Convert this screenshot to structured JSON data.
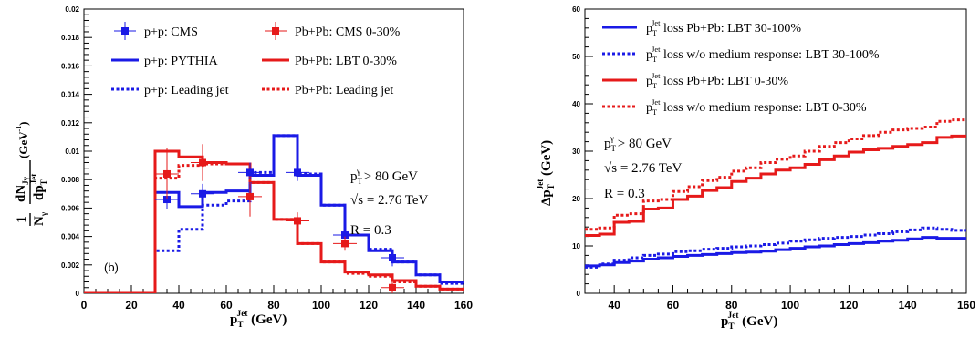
{
  "chart_data": [
    {
      "type": "line",
      "panel_label": "(b)",
      "xlabel": {
        "main": "p",
        "sub": "T",
        "sup": "Jet",
        "unit": " (GeV)"
      },
      "ylabel": {
        "prefix_num": "1",
        "prefix_den": "N",
        "prefix_den_sub": "γ",
        "num": "dN",
        "num_sub": "Jγ",
        "den": "dp",
        "den_sub": "T",
        "den_sup": "Jet",
        "unit": " (GeV",
        "unit_sup": "-1",
        "unit_end": ")"
      },
      "xlim": [
        0,
        160
      ],
      "ylim": [
        0,
        0.02
      ],
      "xticks": [
        "0",
        "20",
        "40",
        "60",
        "80",
        "100",
        "120",
        "140",
        "160"
      ],
      "yticks": [
        "0",
        "0.002",
        "0.004",
        "0.006",
        "0.008",
        "0.01",
        "0.012",
        "0.014",
        "0.016",
        "0.018",
        "0.02"
      ],
      "annotation": {
        "cut": "p",
        "cut_sub": "T",
        "cut_sup": "γ",
        "cut_rest": " > 80 GeV",
        "sqrt": "√",
        "energy": "s = 2.76 TeV",
        "radius": "R = 0.3"
      },
      "legend": [
        {
          "label": "p+p: CMS",
          "color": "#1a1ae6",
          "style": "marker"
        },
        {
          "label": "Pb+Pb: CMS 0-30%",
          "color": "#e61a1a",
          "style": "marker"
        },
        {
          "label": "p+p: PYTHIA",
          "color": "#1a1ae6",
          "style": "solid"
        },
        {
          "label": "Pb+Pb: LBT 0-30%",
          "color": "#e61a1a",
          "style": "solid"
        },
        {
          "label": "p+p: Leading jet",
          "color": "#1a1ae6",
          "style": "dotted"
        },
        {
          "label": "Pb+Pb: Leading jet",
          "color": "#e61a1a",
          "style": "dotted"
        }
      ],
      "series": [
        {
          "name": "p+p: PYTHIA",
          "kind": "hist",
          "style": "solid",
          "color": "#1a1ae6",
          "edges": [
            0,
            10,
            20,
            30,
            40,
            50,
            60,
            70,
            80,
            90,
            100,
            110,
            120,
            130,
            140,
            150,
            160
          ],
          "values": [
            0,
            0,
            0,
            0.0071,
            0.0061,
            0.0071,
            0.0072,
            0.0083,
            0.0111,
            0.0083,
            0.0062,
            0.0041,
            0.003,
            0.0022,
            0.0013,
            0.0008
          ]
        },
        {
          "name": "Pb+Pb: LBT 0-30%",
          "kind": "hist",
          "style": "solid",
          "color": "#e61a1a",
          "edges": [
            0,
            10,
            20,
            30,
            40,
            50,
            60,
            70,
            80,
            90,
            100,
            110,
            120,
            130,
            140,
            150,
            160
          ],
          "values": [
            0,
            0,
            0,
            0.01,
            0.0096,
            0.0092,
            0.0091,
            0.0078,
            0.0052,
            0.0035,
            0.0022,
            0.0015,
            0.0013,
            0.0009,
            0.0005,
            0.0003
          ]
        },
        {
          "name": "p+p: Leading jet",
          "kind": "hist",
          "style": "dotted",
          "color": "#1a1ae6",
          "edges": [
            0,
            10,
            20,
            30,
            40,
            50,
            60,
            70,
            80,
            90,
            100,
            110,
            120,
            130,
            140,
            150,
            160
          ],
          "values": [
            0,
            0,
            0,
            0.003,
            0.0045,
            0.0062,
            0.0065,
            0.0085,
            0.0111,
            0.0084,
            0.0062,
            0.0041,
            0.0031,
            0.0022,
            0.0013,
            0.0007
          ]
        },
        {
          "name": "Pb+Pb: Leading jet",
          "kind": "hist",
          "style": "dotted",
          "color": "#e61a1a",
          "edges": [
            0,
            10,
            20,
            30,
            40,
            50,
            60,
            70,
            80,
            90,
            100,
            110,
            120,
            130,
            140,
            150,
            160
          ],
          "values": [
            0,
            0,
            0,
            0.0081,
            0.009,
            0.0091,
            0.0091,
            0.0078,
            0.0052,
            0.0035,
            0.0022,
            0.0014,
            0.0012,
            0.0008,
            0.0005,
            0.0003
          ]
        },
        {
          "name": "p+p: CMS",
          "kind": "points",
          "marker": "square",
          "color": "#1a1ae6",
          "x": [
            35,
            50,
            70,
            90,
            110,
            130
          ],
          "y": [
            0.0066,
            0.007,
            0.0085,
            0.0085,
            0.0041,
            0.0025
          ],
          "xerr": [
            5,
            5,
            5,
            5,
            5,
            5
          ],
          "yerr": [
            0.0007,
            0.0007,
            0.0007,
            0.0006,
            0.0005,
            0.0006
          ]
        },
        {
          "name": "Pb+Pb: CMS 0-30%",
          "kind": "points",
          "marker": "square",
          "color": "#e61a1a",
          "x": [
            35,
            50,
            70,
            90,
            110,
            130
          ],
          "y": [
            0.0084,
            0.0092,
            0.0068,
            0.0051,
            0.0035,
            0.0004
          ],
          "xerr": [
            5,
            5,
            5,
            5,
            5,
            5
          ],
          "yerr": [
            0.0018,
            0.0013,
            0.0014,
            0.0006,
            0.0005,
            0.0004
          ]
        }
      ]
    },
    {
      "type": "line",
      "xlabel": {
        "main": "p",
        "sub": "T",
        "sup": "Jet",
        "unit": " (GeV)"
      },
      "ylabel": {
        "main": "Δp",
        "sub": "T",
        "sup": "Jet",
        "unit": " (GeV)"
      },
      "xlim": [
        30,
        160
      ],
      "ylim": [
        0,
        60
      ],
      "xticks": [
        "40",
        "60",
        "80",
        "100",
        "120",
        "140",
        "160"
      ],
      "yticks": [
        "0",
        "10",
        "20",
        "30",
        "40",
        "50",
        "60"
      ],
      "annotation": {
        "cut": "p",
        "cut_sub": "T",
        "cut_sup": "γ",
        "cut_rest": " > 80 GeV",
        "sqrt": "√",
        "energy": "s = 2.76 TeV",
        "radius": "R = 0.3"
      },
      "legend": [
        {
          "main": "p",
          "sub": "T",
          "sup": "Jet",
          "rest": " loss Pb+Pb: LBT 30-100%",
          "color": "#1a1ae6",
          "style": "solid"
        },
        {
          "main": "p",
          "sub": "T",
          "sup": "Jet",
          "rest": " loss w/o medium response: LBT 30-100%",
          "color": "#1a1ae6",
          "style": "dotted"
        },
        {
          "main": "p",
          "sub": "T",
          "sup": "Jet",
          "rest": " loss Pb+Pb: LBT 0-30%",
          "color": "#e61a1a",
          "style": "solid"
        },
        {
          "main": "p",
          "sub": "T",
          "sup": "Jet",
          "rest": " loss w/o medium response: LBT 0-30%",
          "color": "#e61a1a",
          "style": "dotted"
        }
      ],
      "series": [
        {
          "name": "loss Pb+Pb: LBT 30-100%",
          "kind": "hist",
          "style": "solid",
          "color": "#1a1ae6",
          "edges": [
            30,
            35,
            40,
            45,
            50,
            55,
            60,
            65,
            70,
            75,
            80,
            85,
            90,
            95,
            100,
            105,
            110,
            115,
            120,
            125,
            130,
            135,
            140,
            145,
            150,
            155,
            160
          ],
          "values": [
            5.8,
            6.0,
            6.5,
            6.8,
            7.2,
            7.5,
            7.8,
            8.0,
            8.2,
            8.4,
            8.6,
            8.7,
            8.9,
            9.2,
            9.5,
            9.8,
            10.0,
            10.3,
            10.5,
            10.7,
            11.0,
            11.2,
            11.5,
            11.8,
            11.6,
            11.6
          ]
        },
        {
          "name": "loss w/o medium response: LBT 30-100%",
          "kind": "hist",
          "style": "dotted",
          "color": "#1a1ae6",
          "edges": [
            30,
            35,
            40,
            45,
            50,
            55,
            60,
            65,
            70,
            75,
            80,
            85,
            90,
            95,
            100,
            105,
            110,
            115,
            120,
            125,
            130,
            135,
            140,
            145,
            150,
            155,
            160
          ],
          "values": [
            5.5,
            6.2,
            7.0,
            7.5,
            8.0,
            8.3,
            8.8,
            9.0,
            9.3,
            9.5,
            9.8,
            10.0,
            10.3,
            10.6,
            11.0,
            11.3,
            11.6,
            11.8,
            12.0,
            12.3,
            12.6,
            13.0,
            13.4,
            13.8,
            13.5,
            13.3
          ]
        },
        {
          "name": "loss Pb+Pb: LBT 0-30%",
          "kind": "hist",
          "style": "solid",
          "color": "#e61a1a",
          "edges": [
            30,
            35,
            40,
            45,
            50,
            55,
            60,
            65,
            70,
            75,
            80,
            85,
            90,
            95,
            100,
            105,
            110,
            115,
            120,
            125,
            130,
            135,
            140,
            145,
            150,
            155,
            160
          ],
          "values": [
            12.2,
            12.5,
            15.0,
            15.2,
            17.8,
            18.0,
            19.8,
            20.5,
            21.7,
            22.3,
            23.6,
            24.3,
            25.2,
            26.0,
            26.5,
            27.2,
            28.2,
            29.0,
            29.8,
            30.3,
            30.6,
            31.0,
            31.4,
            31.8,
            32.9,
            33.2
          ]
        },
        {
          "name": "loss w/o medium response: LBT 0-30%",
          "kind": "hist",
          "style": "dotted",
          "color": "#e61a1a",
          "edges": [
            30,
            35,
            40,
            45,
            50,
            55,
            60,
            65,
            70,
            75,
            80,
            85,
            90,
            95,
            100,
            105,
            110,
            115,
            120,
            125,
            130,
            135,
            140,
            145,
            150,
            155,
            160
          ],
          "values": [
            13.5,
            13.8,
            16.5,
            16.8,
            19.5,
            19.8,
            21.5,
            22.5,
            23.8,
            24.5,
            25.8,
            26.5,
            27.6,
            28.3,
            29.0,
            30.0,
            31.0,
            31.8,
            32.6,
            33.3,
            34.0,
            34.5,
            34.8,
            35.1,
            36.3,
            36.6
          ]
        }
      ]
    }
  ]
}
